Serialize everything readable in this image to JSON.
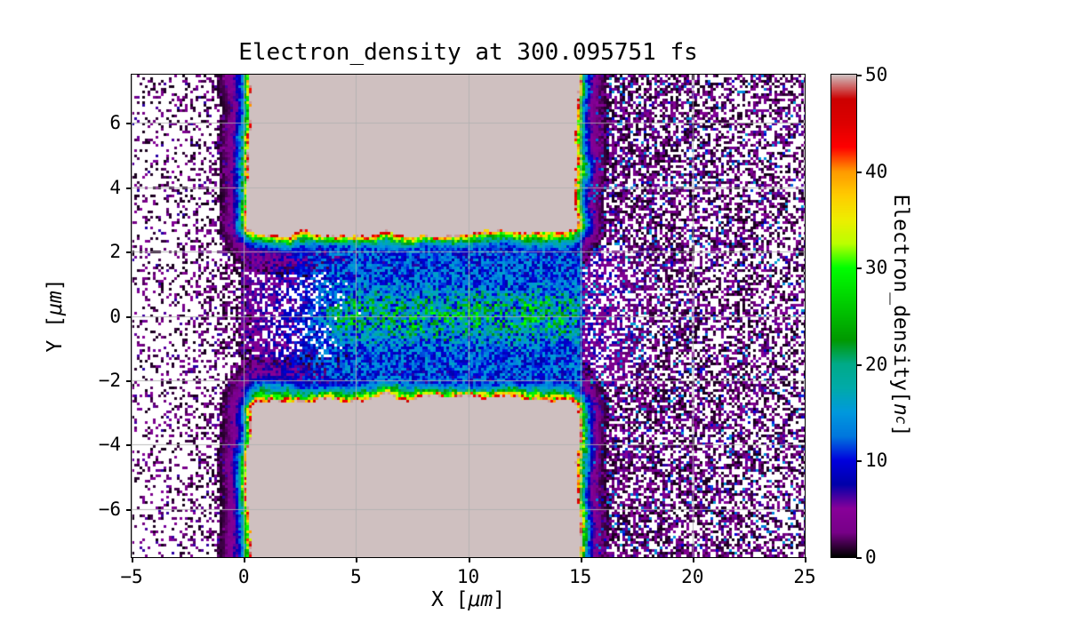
{
  "chart_data": {
    "type": "heatmap",
    "title": "Electron_density at 300.095751 fs",
    "xlabel": {
      "pre": "X [",
      "math": "μm",
      "post": "]"
    },
    "ylabel": {
      "pre": "Y [",
      "math": "μm",
      "post": "]"
    },
    "xlim": [
      -5,
      25
    ],
    "ylim": [
      -7.5,
      7.5
    ],
    "xticks": [
      -5,
      0,
      5,
      10,
      15,
      20,
      25
    ],
    "xtick_labels": [
      "−5",
      "0",
      "5",
      "10",
      "15",
      "20",
      "25"
    ],
    "yticks": [
      -6,
      -4,
      -2,
      0,
      2,
      4,
      6
    ],
    "ytick_labels": [
      "−6",
      "−4",
      "−2",
      "0",
      "2",
      "4",
      "6"
    ],
    "grid": {
      "show": true,
      "color": "#b0b0b0",
      "alpha": 0.85
    },
    "frame_color": "#000000",
    "background_color": "#ffffff",
    "colorbar": {
      "label": {
        "pre": "Electron_density[",
        "math": "n",
        "sub": "c",
        "post": "]"
      },
      "vmin": 0,
      "vmax": 50,
      "ticks": [
        0,
        10,
        20,
        30,
        40,
        50
      ],
      "tick_labels": [
        "0",
        "10",
        "20",
        "30",
        "40",
        "50"
      ],
      "over_color": "#cfc0c0",
      "colormap_stops": [
        [
          0.0,
          "#000000"
        ],
        [
          0.05,
          "#770088"
        ],
        [
          0.1,
          "#880099"
        ],
        [
          0.15,
          "#0000aa"
        ],
        [
          0.2,
          "#0000dd"
        ],
        [
          0.25,
          "#0077dd"
        ],
        [
          0.3,
          "#0099dd"
        ],
        [
          0.35,
          "#00aaaa"
        ],
        [
          0.4,
          "#00aa88"
        ],
        [
          0.45,
          "#009900"
        ],
        [
          0.5,
          "#00bb00"
        ],
        [
          0.55,
          "#00dd00"
        ],
        [
          0.6,
          "#00ff00"
        ],
        [
          0.65,
          "#bbff00"
        ],
        [
          0.7,
          "#eeee00"
        ],
        [
          0.75,
          "#ffcc00"
        ],
        [
          0.8,
          "#ff9900"
        ],
        [
          0.85,
          "#ff0000"
        ],
        [
          0.9,
          "#dd0000"
        ],
        [
          0.95,
          "#cc0000"
        ],
        [
          1.0,
          "#cfc0c0"
        ]
      ]
    },
    "model": {
      "description": "Two over-dense target slabs (x 0.2–14.9 um, |y| > 2.55 um) saturated above 50 nc with rainbow density gradient edges; heated plasma channel between them with a hot green core (x 4–15, |y|<0.8); sparse low-density speckle plasma in vacuum x<0; dense purple speckle plasma for x>15.",
      "slabs": {
        "x0": 0.2,
        "x1": 14.9,
        "y_inner": 2.55,
        "y_outer": 9.0,
        "corner_radius": 0.6,
        "wiggle_amp": 0.3,
        "wiggle_fine": 0.12,
        "over_value": 60,
        "edge_value": 46,
        "edge_decay": 0.3
      },
      "channel": {
        "x_start": 0.3,
        "x_ramp_end": 4.5,
        "x_end": 15.05,
        "half_width": 2.6,
        "base": 6.5,
        "noise": 9.5,
        "dropout_max": 0.3,
        "cap": 30
      },
      "core": {
        "x_start": 4.0,
        "x_end": 15.0,
        "sigma": 0.75,
        "base": 6,
        "noise": 15
      },
      "left_speckle": {
        "coverage_near": 0.75,
        "coverage_far": 0.14,
        "falloff": 1.9,
        "vmax": 6.5
      },
      "right_speckle": {
        "coverage_near": 0.66,
        "coverage_far": 0.48,
        "vmax": 7.5,
        "blue_fraction": 0.08,
        "channel_bonus": 3
      },
      "seed": 7
    }
  }
}
